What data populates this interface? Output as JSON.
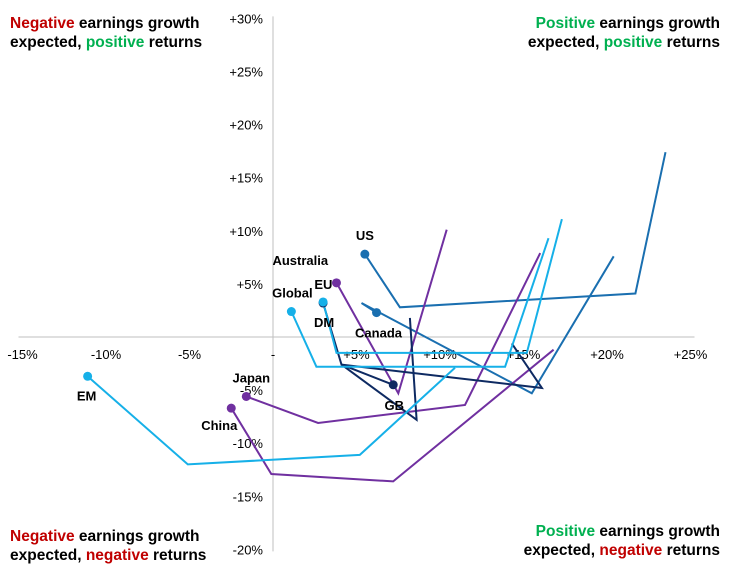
{
  "chart_data": {
    "type": "line",
    "title": "",
    "xlabel": "",
    "ylabel": "",
    "xlim": [
      -15,
      25
    ],
    "ylim": [
      -20,
      30
    ],
    "x_ticks": [
      -15,
      -10,
      -5,
      0,
      5,
      10,
      15,
      20,
      25
    ],
    "x_tick_labels": [
      "-15%",
      "-10%",
      "-5%",
      "-",
      "+5%",
      "+10%",
      "+15%",
      "+20%",
      "+25%"
    ],
    "y_ticks": [
      30,
      25,
      20,
      15,
      10,
      5,
      -5,
      -10,
      -15,
      -20
    ],
    "y_tick_labels": [
      "+30%",
      "+25%",
      "+20%",
      "+15%",
      "+10%",
      "+5%",
      "-5%",
      "-10%",
      "-15%",
      "-20%"
    ],
    "grid": false,
    "marker_at": "last point",
    "series": [
      {
        "name": "US",
        "color": "#1a6fb0",
        "points": [
          [
            23.5,
            17.4
          ],
          [
            21.7,
            4.1
          ],
          [
            7.6,
            2.8
          ],
          [
            5.5,
            7.8
          ]
        ]
      },
      {
        "name": "Canada",
        "color": "#1a6fb0",
        "points": [
          [
            20.4,
            7.6
          ],
          [
            15.5,
            -5.3
          ],
          [
            5.3,
            3.2
          ],
          [
            6.2,
            2.3
          ]
        ]
      },
      {
        "name": "EU",
        "color": "#7030a0",
        "points": [
          [
            10.4,
            10.1
          ],
          [
            7.5,
            -5.3
          ],
          [
            3.8,
            5.1
          ]
        ]
      },
      {
        "name": "Japan",
        "color": "#7030a0",
        "points": [
          [
            16.0,
            7.9
          ],
          [
            11.5,
            -6.4
          ],
          [
            2.7,
            -8.1
          ],
          [
            -1.6,
            -5.6
          ]
        ]
      },
      {
        "name": "China",
        "color": "#7030a0",
        "points": [
          [
            16.8,
            -1.2
          ],
          [
            7.2,
            -13.6
          ],
          [
            -0.1,
            -12.9
          ],
          [
            -2.5,
            -6.7
          ]
        ]
      },
      {
        "name": "Australia",
        "color": "#0e2a62",
        "points": [
          [
            14.3,
            -0.6
          ],
          [
            16.1,
            -4.8
          ],
          [
            4.1,
            -2.6
          ],
          [
            3.0,
            3.2
          ]
        ]
      },
      {
        "name": "GB",
        "color": "#0e2a62",
        "points": [
          [
            8.2,
            1.8
          ],
          [
            8.6,
            -7.8
          ],
          [
            4.1,
            -2.6
          ],
          [
            7.2,
            -4.5
          ]
        ]
      },
      {
        "name": "Global",
        "color": "#16b0e8",
        "points": [
          [
            16.5,
            9.3
          ],
          [
            13.9,
            -2.8
          ],
          [
            2.6,
            -2.8
          ],
          [
            1.1,
            2.4
          ]
        ]
      },
      {
        "name": "DM",
        "color": "#16b0e8",
        "points": [
          [
            17.3,
            11.1
          ],
          [
            15.2,
            -1.5
          ],
          [
            3.8,
            -1.5
          ],
          [
            3.0,
            3.3
          ]
        ]
      },
      {
        "name": "EM",
        "color": "#16b0e8",
        "points": [
          [
            10.9,
            -2.9
          ],
          [
            5.2,
            -11.1
          ],
          [
            -5.1,
            -12.0
          ],
          [
            -11.1,
            -3.7
          ]
        ]
      }
    ],
    "annotations": {
      "top_left": {
        "w1": "Negative",
        "w2": " earnings growth",
        "w3": "expected, ",
        "w4": "positive",
        "w5": " returns"
      },
      "top_right": {
        "w1": "Positive",
        "w2": " earnings growth",
        "w3": "expected, ",
        "w4": "positive",
        "w5": " returns"
      },
      "bottom_left": {
        "w1": "Negative",
        "w2": " earnings growth",
        "w3": "expected, ",
        "w4": "negative",
        "w5": " returns"
      },
      "bottom_right": {
        "w1": "Positive",
        "w2": " earnings growth",
        "w3": "expected, ",
        "w4": "negative",
        "w5": " returns"
      }
    },
    "colors": {
      "negative_word": "#c00000",
      "positive_word": "#00b050",
      "axis": "#bfbfbf"
    }
  }
}
